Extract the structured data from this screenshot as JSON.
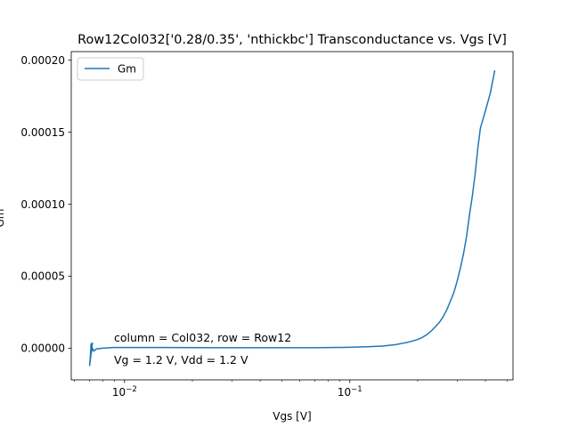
{
  "chart_data": {
    "type": "line",
    "title": "Row12Col032['0.28/0.35', 'nthickbc'] Transconductance vs. Vgs [V]",
    "xlabel": "Vgs [V]",
    "ylabel": "Gm",
    "xscale": "log",
    "xlim": [
      0.0058,
      0.53
    ],
    "ylim": [
      -2.2e-05,
      0.000206
    ],
    "x_ticks": [
      {
        "value": 0.01,
        "base": "10",
        "exp": "−2"
      },
      {
        "value": 0.1,
        "base": "10",
        "exp": "−1"
      }
    ],
    "y_ticks": [
      {
        "value": 0.0,
        "label": "0.00000"
      },
      {
        "value": 5e-05,
        "label": "0.00005"
      },
      {
        "value": 0.0001,
        "label": "0.00010"
      },
      {
        "value": 0.00015,
        "label": "0.00015"
      },
      {
        "value": 0.0002,
        "label": "0.00020"
      }
    ],
    "legend": {
      "position": "top-left",
      "entries": [
        "Gm"
      ]
    },
    "grid": false,
    "series": [
      {
        "name": "Gm",
        "color": "#1f77b4",
        "x": [
          0.0072,
          0.00715,
          0.0071,
          0.00705,
          0.007,
          0.0071,
          0.0072,
          0.0073,
          0.0075,
          0.008,
          0.009,
          0.01,
          0.015,
          0.02,
          0.03,
          0.05,
          0.07,
          0.1,
          0.12,
          0.14,
          0.16,
          0.17,
          0.18,
          0.19,
          0.2,
          0.21,
          0.22,
          0.23,
          0.24,
          0.25,
          0.26,
          0.27,
          0.28,
          0.29,
          0.3,
          0.31,
          0.32,
          0.33,
          0.34,
          0.35,
          0.36,
          0.37,
          0.38,
          0.39,
          0.4,
          0.42,
          0.44
        ],
        "y": [
          4e-06,
          -2e-06,
          3e-06,
          -6e-06,
          -1.2e-05,
          -4e-06,
          0.0,
          -2e-06,
          -5e-07,
          0.0,
          5e-07,
          5e-07,
          5e-07,
          4e-07,
          3e-07,
          3e-07,
          3e-07,
          6e-07,
          1e-06,
          1.5e-06,
          2.5e-06,
          3.3e-06,
          4e-06,
          5e-06,
          6e-06,
          7.5e-06,
          9.5e-06,
          1.2e-05,
          1.5e-05,
          1.8e-05,
          2.2e-05,
          2.7e-05,
          3.3e-05,
          3.9e-05,
          4.7e-05,
          5.6e-05,
          6.6e-05,
          7.8e-05,
          9.3e-05,
          0.000106,
          0.000121,
          0.000139,
          0.000153,
          0.000159,
          0.000165,
          0.000177,
          0.000193
        ]
      }
    ],
    "annotations": [
      "column = Col032, row = Row12",
      "Vg = 1.2 V, Vdd = 1.2 V"
    ]
  }
}
